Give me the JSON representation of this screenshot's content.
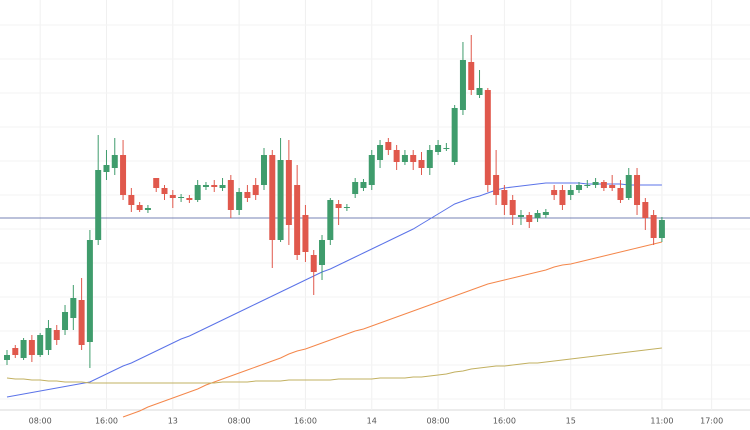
{
  "chart_data": {
    "type": "candlestick",
    "categories": [
      null,
      null,
      null,
      null,
      "08:00",
      null,
      null,
      null,
      null,
      null,
      null,
      null,
      "16:00",
      null,
      null,
      null,
      null,
      null,
      null,
      null,
      "13",
      null,
      null,
      null,
      null,
      null,
      null,
      null,
      "08:00",
      null,
      null,
      null,
      null,
      null,
      null,
      null,
      "16:00",
      null,
      null,
      null,
      null,
      null,
      null,
      null,
      "14",
      null,
      null,
      null,
      null,
      null,
      null,
      null,
      "08:00",
      null,
      null,
      null,
      null,
      null,
      null,
      null,
      "16:00",
      null,
      null,
      null,
      null,
      null,
      null,
      null,
      "15",
      null,
      null,
      null,
      null,
      null,
      null,
      null,
      null,
      null,
      null,
      "11:00",
      null,
      null,
      null,
      null,
      null,
      "17:00"
    ],
    "open": [
      70,
      82,
      72,
      90,
      75,
      80,
      100,
      100,
      112,
      130,
      88,
      190,
      258,
      262,
      275,
      235,
      225,
      220,
      252,
      242,
      235,
      232,
      232,
      230,
      243,
      245,
      242,
      250,
      220,
      238,
      245,
      245,
      275,
      190,
      270,
      245,
      215,
      175,
      165,
      190,
      226,
      222,
      236,
      242,
      245,
      270,
      288,
      280,
      268,
      275,
      270,
      262,
      278,
      282,
      268,
      320,
      368,
      335,
      340,
      255,
      240,
      230,
      213,
      215,
      212,
      215,
      240,
      240,
      235,
      240,
      245,
      245,
      248,
      245,
      242,
      232,
      255,
      228,
      215,
      192,
      null,
      null,
      null,
      null,
      null,
      null
    ],
    "high": [
      80,
      85,
      92,
      95,
      97,
      110,
      105,
      125,
      145,
      152,
      200,
      295,
      280,
      292,
      290,
      242,
      228,
      225,
      252,
      245,
      240,
      236,
      235,
      250,
      248,
      250,
      252,
      255,
      242,
      245,
      252,
      282,
      280,
      292,
      290,
      265,
      225,
      180,
      195,
      232,
      230,
      226,
      252,
      251,
      280,
      290,
      292,
      285,
      280,
      280,
      278,
      285,
      290,
      287,
      325,
      388,
      395,
      360,
      342,
      280,
      245,
      235,
      220,
      218,
      220,
      221,
      245,
      245,
      245,
      248,
      250,
      252,
      250,
      255,
      250,
      262,
      262,
      232,
      220,
      213,
      null,
      null,
      null,
      null,
      null,
      null
    ],
    "low": [
      65,
      72,
      70,
      68,
      73,
      75,
      85,
      95,
      100,
      80,
      62,
      185,
      250,
      255,
      230,
      218,
      218,
      217,
      238,
      230,
      222,
      228,
      227,
      228,
      240,
      238,
      239,
      212,
      215,
      228,
      230,
      240,
      162,
      188,
      185,
      170,
      168,
      135,
      150,
      185,
      205,
      219,
      232,
      239,
      240,
      262,
      275,
      260,
      265,
      260,
      255,
      255,
      275,
      279,
      265,
      315,
      335,
      332,
      238,
      225,
      215,
      205,
      205,
      202,
      208,
      212,
      230,
      220,
      230,
      237,
      242,
      242,
      239,
      239,
      227,
      230,
      215,
      200,
      185,
      188,
      null,
      null,
      null,
      null,
      null,
      null
    ],
    "close": [
      75,
      75,
      90,
      75,
      95,
      102,
      90,
      118,
      132,
      85,
      190,
      260,
      265,
      275,
      235,
      225,
      220,
      222,
      242,
      236,
      232,
      233,
      230,
      245,
      245,
      243,
      245,
      220,
      238,
      232,
      235,
      275,
      190,
      270,
      205,
      175,
      178,
      158,
      190,
      230,
      222,
      223,
      248,
      248,
      275,
      285,
      280,
      268,
      275,
      268,
      262,
      280,
      285,
      282,
      322,
      370,
      340,
      342,
      245,
      235,
      225,
      215,
      215,
      208,
      217,
      218,
      235,
      225,
      240,
      245,
      245,
      248,
      242,
      242,
      230,
      255,
      225,
      212,
      192,
      210,
      null,
      null,
      null,
      null,
      null,
      null
    ],
    "up_color": "#3f9c6c",
    "down_color": "#e0584c",
    "series": [
      {
        "color": "#5b73e8",
        "values": [
          33,
          34.5,
          36,
          37.5,
          39,
          40.5,
          42,
          43.5,
          45,
          46.5,
          48,
          52,
          56,
          60,
          64,
          67,
          71,
          75,
          79,
          83,
          87,
          91,
          94,
          98,
          102,
          106,
          110,
          114,
          118,
          122,
          126,
          130,
          134,
          138,
          142,
          146,
          150,
          154,
          158,
          161,
          165,
          169,
          173,
          177,
          181,
          185,
          189,
          193,
          197,
          201,
          206,
          211,
          216,
          221,
          226,
          229,
          232,
          234,
          237,
          240,
          242,
          243,
          244,
          245,
          246,
          247,
          247,
          247,
          247,
          247,
          246,
          246,
          246,
          246,
          246,
          245,
          245,
          245,
          245,
          245,
          null,
          null,
          null,
          null,
          null,
          null
        ]
      },
      {
        "color": "#f4874b",
        "values": [
          null,
          null,
          null,
          null,
          null,
          null,
          null,
          null,
          null,
          null,
          null,
          null,
          null,
          null,
          13,
          16,
          19,
          23,
          26,
          29,
          32,
          35,
          38,
          41,
          45,
          48,
          51,
          54,
          57,
          60,
          63,
          66,
          69,
          72,
          76,
          79,
          81,
          84,
          87,
          90,
          93,
          96,
          99,
          101,
          104,
          107,
          110,
          113,
          116,
          119,
          122,
          125,
          128,
          131,
          134,
          137,
          140,
          143,
          146,
          148,
          150,
          152,
          154,
          156,
          158,
          160,
          163,
          165,
          166,
          168,
          170,
          172,
          174,
          176,
          178,
          180,
          182,
          184,
          186,
          188,
          null,
          null,
          null,
          null,
          null,
          null
        ]
      },
      {
        "color": "#c2b060",
        "values": [
          52,
          51,
          51,
          50,
          50,
          49,
          49,
          48,
          48,
          48,
          47,
          47,
          47,
          47,
          47,
          47,
          47,
          47,
          47,
          47,
          47,
          47,
          47,
          47,
          47,
          47,
          48,
          48,
          48,
          48,
          49,
          49,
          49,
          49,
          50,
          50,
          50,
          50,
          50,
          50,
          51,
          51,
          51,
          51,
          51,
          52,
          52,
          52,
          52,
          53,
          53,
          54,
          55,
          56,
          58,
          59,
          61,
          62,
          63,
          64,
          64,
          65,
          66,
          67,
          67,
          68,
          69,
          70,
          71,
          72,
          73,
          74,
          75,
          76,
          77,
          78,
          79,
          80,
          81,
          82,
          null,
          null,
          null,
          null,
          null,
          null
        ]
      }
    ],
    "price_line": 212,
    "price_line_color": "#4a5a9c",
    "ylim": [
      0,
      430
    ],
    "grid": true
  }
}
